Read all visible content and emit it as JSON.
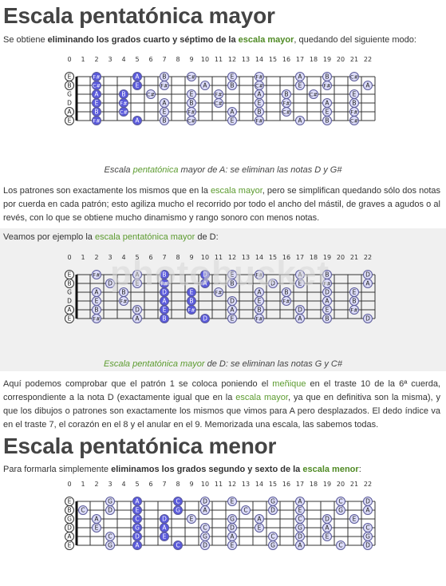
{
  "section1": {
    "title": "Escala pentatónica mayor",
    "intro": [
      {
        "t": "Se obtiene "
      },
      {
        "t": "eliminando los grados cuarto y séptimo de la",
        "b": true
      },
      {
        "t": " "
      },
      {
        "t": "escala mayor",
        "b": true,
        "g": true
      },
      {
        "t": ", quedando del siguiente modo:"
      }
    ],
    "caption": [
      {
        "t": "Escala "
      },
      {
        "t": "pentatónica",
        "g": true
      },
      {
        "t": " mayor de A: se eliminan las notas D y G#"
      }
    ],
    "para1": [
      {
        "t": "Los patrones son exactamente los mismos que en la "
      },
      {
        "t": "escala mayor",
        "g": true
      },
      {
        "t": ", pero se simplifican quedando sólo dos notas por cuerda en cada patrón; esto agiliza mucho el recorrido por todo el ancho del mástil, de graves a agudos o al revés, con lo que se obtiene mucho dinamismo y rango sonoro con menos notas."
      }
    ],
    "para2": [
      {
        "t": "Veamos por ejemplo la "
      },
      {
        "t": "escala pentatónica mayor",
        "g": true
      },
      {
        "t": " de D:"
      }
    ],
    "caption2": [
      {
        "t": "Escala pentatónica mayor",
        "g": true
      },
      {
        "t": " de D: se eliminan las notas G y C#"
      }
    ],
    "para3": [
      {
        "t": "Aquí podemos comprobar que el patrón 1 se coloca poniendo el "
      },
      {
        "t": "meñique",
        "g": true
      },
      {
        "t": " en el traste 10 de la 6ª cuerda, correspondiente a la nota D (exactamente igual que en la "
      },
      {
        "t": "escala mayor",
        "g": true
      },
      {
        "t": ", ya que en definitiva son la misma), y que los dibujos o patrones son exactamente los mismos que vimos para A pero desplazados. El dedo índice va en el traste 7, el corazón en el 8 y el anular en el 9. Memorizada una escala, las sabemos todas."
      }
    ]
  },
  "watermark": "photobucket",
  "section2": {
    "title": "Escala pentatónica menor",
    "intro": [
      {
        "t": "Para formarla simplemente "
      },
      {
        "t": "eliminamos los grados segundo y sexto de la",
        "b": true
      },
      {
        "t": " "
      },
      {
        "t": "escala menor",
        "b": true,
        "g": true
      },
      {
        "t": ":"
      }
    ]
  },
  "fret_numbers": [
    "0",
    "1",
    "2",
    "3",
    "4",
    "5",
    "6",
    "7",
    "8",
    "9",
    "10",
    "11",
    "12",
    "13",
    "14",
    "15",
    "16",
    "17",
    "18",
    "19",
    "20",
    "21",
    "22"
  ],
  "colors": {
    "fill_light": "#dcdcf8",
    "fill_dark": "#5a5adc",
    "stroke": "#5a5a99",
    "line": "#333333"
  },
  "fretboards": [
    {
      "name": "a-major-pentatonic",
      "strings": [
        {
          "open": "E",
          "notes": [
            {
              "f": 2,
              "n": "F#",
              "d": true
            },
            {
              "f": 5,
              "n": "A",
              "d": true
            },
            {
              "f": 7,
              "n": "B"
            },
            {
              "f": 9,
              "n": "C#"
            },
            {
              "f": 12,
              "n": "E"
            },
            {
              "f": 14,
              "n": "F#"
            },
            {
              "f": 17,
              "n": "A"
            },
            {
              "f": 19,
              "n": "B"
            },
            {
              "f": 21,
              "n": "C#"
            }
          ]
        },
        {
          "open": "B",
          "notes": [
            {
              "f": 2,
              "n": "C#",
              "d": true
            },
            {
              "f": 5,
              "n": "E",
              "d": true
            },
            {
              "f": 7,
              "n": "F#"
            },
            {
              "f": 10,
              "n": "A"
            },
            {
              "f": 12,
              "n": "B"
            },
            {
              "f": 14,
              "n": "C#"
            },
            {
              "f": 17,
              "n": "E"
            },
            {
              "f": 19,
              "n": "F#"
            },
            {
              "f": 22,
              "n": "A"
            }
          ]
        },
        {
          "open": "G",
          "notes": [
            {
              "f": 2,
              "n": "A",
              "d": true
            },
            {
              "f": 4,
              "n": "B",
              "d": true
            },
            {
              "f": 6,
              "n": "C#"
            },
            {
              "f": 9,
              "n": "E"
            },
            {
              "f": 11,
              "n": "F#"
            },
            {
              "f": 14,
              "n": "A"
            },
            {
              "f": 16,
              "n": "B"
            },
            {
              "f": 18,
              "n": "C#"
            },
            {
              "f": 21,
              "n": "E"
            }
          ]
        },
        {
          "open": "D",
          "notes": [
            {
              "f": 2,
              "n": "E",
              "d": true
            },
            {
              "f": 4,
              "n": "F#",
              "d": true
            },
            {
              "f": 7,
              "n": "A"
            },
            {
              "f": 9,
              "n": "B"
            },
            {
              "f": 11,
              "n": "C#"
            },
            {
              "f": 14,
              "n": "E"
            },
            {
              "f": 16,
              "n": "F#"
            },
            {
              "f": 19,
              "n": "A"
            },
            {
              "f": 21,
              "n": "B"
            }
          ]
        },
        {
          "open": "A",
          "notes": [
            {
              "f": 2,
              "n": "B",
              "d": true
            },
            {
              "f": 4,
              "n": "C#",
              "d": true
            },
            {
              "f": 7,
              "n": "E"
            },
            {
              "f": 9,
              "n": "F#"
            },
            {
              "f": 12,
              "n": "A"
            },
            {
              "f": 14,
              "n": "B"
            },
            {
              "f": 16,
              "n": "C#"
            },
            {
              "f": 19,
              "n": "E"
            },
            {
              "f": 21,
              "n": "F#"
            }
          ]
        },
        {
          "open": "E",
          "notes": [
            {
              "f": 2,
              "n": "F#",
              "d": true
            },
            {
              "f": 5,
              "n": "A",
              "d": true
            },
            {
              "f": 7,
              "n": "B"
            },
            {
              "f": 9,
              "n": "C#"
            },
            {
              "f": 12,
              "n": "E"
            },
            {
              "f": 14,
              "n": "F#"
            },
            {
              "f": 17,
              "n": "A"
            },
            {
              "f": 19,
              "n": "B"
            },
            {
              "f": 21,
              "n": "C#"
            }
          ]
        }
      ]
    },
    {
      "name": "d-major-pentatonic",
      "strings": [
        {
          "open": "E",
          "notes": [
            {
              "f": 2,
              "n": "F#"
            },
            {
              "f": 5,
              "n": "A"
            },
            {
              "f": 7,
              "n": "B",
              "d": true
            },
            {
              "f": 10,
              "n": "D",
              "d": true
            },
            {
              "f": 12,
              "n": "E"
            },
            {
              "f": 14,
              "n": "F#"
            },
            {
              "f": 17,
              "n": "A"
            },
            {
              "f": 19,
              "n": "B"
            },
            {
              "f": 22,
              "n": "D"
            }
          ]
        },
        {
          "open": "B",
          "notes": [
            {
              "f": 3,
              "n": "D"
            },
            {
              "f": 5,
              "n": "E"
            },
            {
              "f": 7,
              "n": "F#",
              "d": true
            },
            {
              "f": 10,
              "n": "A",
              "d": true
            },
            {
              "f": 12,
              "n": "B"
            },
            {
              "f": 15,
              "n": "D"
            },
            {
              "f": 17,
              "n": "E"
            },
            {
              "f": 19,
              "n": "F#"
            },
            {
              "f": 22,
              "n": "A"
            }
          ]
        },
        {
          "open": "G",
          "notes": [
            {
              "f": 2,
              "n": "A"
            },
            {
              "f": 4,
              "n": "B"
            },
            {
              "f": 7,
              "n": "D",
              "d": true
            },
            {
              "f": 9,
              "n": "E",
              "d": true
            },
            {
              "f": 11,
              "n": "F#"
            },
            {
              "f": 14,
              "n": "A"
            },
            {
              "f": 16,
              "n": "B"
            },
            {
              "f": 19,
              "n": "D"
            },
            {
              "f": 21,
              "n": "E"
            }
          ]
        },
        {
          "open": "D",
          "notes": [
            {
              "f": 2,
              "n": "E"
            },
            {
              "f": 4,
              "n": "F#"
            },
            {
              "f": 7,
              "n": "A",
              "d": true
            },
            {
              "f": 9,
              "n": "B",
              "d": true
            },
            {
              "f": 12,
              "n": "D"
            },
            {
              "f": 14,
              "n": "E"
            },
            {
              "f": 16,
              "n": "F#"
            },
            {
              "f": 19,
              "n": "A"
            },
            {
              "f": 21,
              "n": "B"
            }
          ]
        },
        {
          "open": "A",
          "notes": [
            {
              "f": 2,
              "n": "B"
            },
            {
              "f": 5,
              "n": "D"
            },
            {
              "f": 7,
              "n": "E",
              "d": true
            },
            {
              "f": 9,
              "n": "F#",
              "d": true
            },
            {
              "f": 12,
              "n": "A"
            },
            {
              "f": 14,
              "n": "B"
            },
            {
              "f": 17,
              "n": "D"
            },
            {
              "f": 19,
              "n": "E"
            },
            {
              "f": 21,
              "n": "F#"
            }
          ]
        },
        {
          "open": "E",
          "notes": [
            {
              "f": 2,
              "n": "F#"
            },
            {
              "f": 5,
              "n": "A"
            },
            {
              "f": 7,
              "n": "B",
              "d": true
            },
            {
              "f": 10,
              "n": "D",
              "d": true
            },
            {
              "f": 12,
              "n": "E"
            },
            {
              "f": 14,
              "n": "F#"
            },
            {
              "f": 17,
              "n": "A"
            },
            {
              "f": 19,
              "n": "B"
            },
            {
              "f": 22,
              "n": "D"
            }
          ]
        }
      ]
    },
    {
      "name": "a-minor-pentatonic",
      "strings": [
        {
          "open": "E",
          "notes": [
            {
              "f": 3,
              "n": "G"
            },
            {
              "f": 5,
              "n": "A",
              "d": true
            },
            {
              "f": 8,
              "n": "C",
              "d": true
            },
            {
              "f": 10,
              "n": "D"
            },
            {
              "f": 12,
              "n": "E"
            },
            {
              "f": 15,
              "n": "G"
            },
            {
              "f": 17,
              "n": "A"
            },
            {
              "f": 20,
              "n": "C"
            },
            {
              "f": 22,
              "n": "D"
            }
          ]
        },
        {
          "open": "B",
          "notes": [
            {
              "f": 1,
              "n": "C"
            },
            {
              "f": 3,
              "n": "D"
            },
            {
              "f": 5,
              "n": "E",
              "d": true
            },
            {
              "f": 8,
              "n": "G",
              "d": true
            },
            {
              "f": 10,
              "n": "A"
            },
            {
              "f": 13,
              "n": "C"
            },
            {
              "f": 15,
              "n": "D"
            },
            {
              "f": 17,
              "n": "E"
            },
            {
              "f": 20,
              "n": "G"
            },
            {
              "f": 22,
              "n": "A"
            }
          ]
        },
        {
          "open": "G",
          "notes": [
            {
              "f": 2,
              "n": "A"
            },
            {
              "f": 5,
              "n": "C",
              "d": true
            },
            {
              "f": 7,
              "n": "D",
              "d": true
            },
            {
              "f": 9,
              "n": "E"
            },
            {
              "f": 12,
              "n": "G"
            },
            {
              "f": 14,
              "n": "A"
            },
            {
              "f": 17,
              "n": "C"
            },
            {
              "f": 19,
              "n": "D"
            },
            {
              "f": 21,
              "n": "E"
            }
          ]
        },
        {
          "open": "D",
          "notes": [
            {
              "f": 2,
              "n": "E"
            },
            {
              "f": 5,
              "n": "G",
              "d": true
            },
            {
              "f": 7,
              "n": "A",
              "d": true
            },
            {
              "f": 10,
              "n": "C"
            },
            {
              "f": 12,
              "n": "D"
            },
            {
              "f": 14,
              "n": "E"
            },
            {
              "f": 17,
              "n": "G"
            },
            {
              "f": 19,
              "n": "A"
            },
            {
              "f": 22,
              "n": "C"
            }
          ]
        },
        {
          "open": "A",
          "notes": [
            {
              "f": 3,
              "n": "C"
            },
            {
              "f": 5,
              "n": "D",
              "d": true
            },
            {
              "f": 7,
              "n": "E",
              "d": true
            },
            {
              "f": 10,
              "n": "G"
            },
            {
              "f": 12,
              "n": "A"
            },
            {
              "f": 15,
              "n": "C"
            },
            {
              "f": 17,
              "n": "D"
            },
            {
              "f": 19,
              "n": "E"
            },
            {
              "f": 22,
              "n": "G"
            }
          ]
        },
        {
          "open": "E",
          "notes": [
            {
              "f": 3,
              "n": "G"
            },
            {
              "f": 5,
              "n": "A",
              "d": true
            },
            {
              "f": 8,
              "n": "C",
              "d": true
            },
            {
              "f": 10,
              "n": "D"
            },
            {
              "f": 12,
              "n": "E"
            },
            {
              "f": 15,
              "n": "G"
            },
            {
              "f": 17,
              "n": "A"
            },
            {
              "f": 20,
              "n": "C"
            },
            {
              "f": 22,
              "n": "D"
            }
          ]
        }
      ]
    }
  ]
}
